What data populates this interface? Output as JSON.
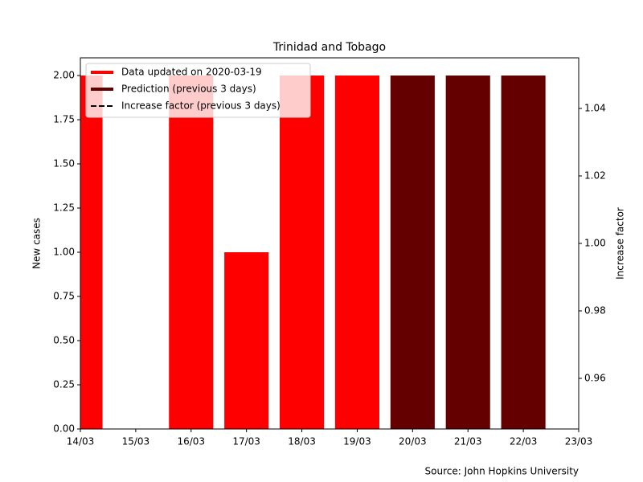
{
  "chart_data": {
    "type": "bar",
    "title": "Trinidad and Tobago",
    "ylabel": "New cases",
    "y2label": "Increase factor",
    "source": "Source: John Hopkins University",
    "categories": [
      "14/03",
      "15/03",
      "16/03",
      "17/03",
      "18/03",
      "19/03",
      "20/03",
      "21/03",
      "22/03",
      "23/03"
    ],
    "series": [
      {
        "name": "Data updated on 2020-03-19",
        "color": "#ff0000",
        "values": [
          2,
          0,
          2,
          1,
          2,
          2,
          null,
          null,
          null,
          null
        ]
      },
      {
        "name": "Prediction (previous 3 days)",
        "color": "#640000",
        "values": [
          null,
          null,
          null,
          null,
          null,
          null,
          2,
          2,
          2,
          null
        ]
      },
      {
        "name": "Increase factor (previous 3 days)",
        "color": "#000000",
        "style": "dashed",
        "axis": "y2",
        "values": [
          null,
          null,
          null,
          null,
          null,
          null,
          null,
          null,
          null,
          null
        ]
      }
    ],
    "ylim": [
      0,
      2.1
    ],
    "yticks": [
      {
        "value": 0,
        "label": "0.00"
      },
      {
        "value": 0.25,
        "label": "0.25"
      },
      {
        "value": 0.5,
        "label": "0.50"
      },
      {
        "value": 0.75,
        "label": "0.75"
      },
      {
        "value": 1,
        "label": "1.00"
      },
      {
        "value": 1.25,
        "label": "1.25"
      },
      {
        "value": 1.5,
        "label": "1.50"
      },
      {
        "value": 1.75,
        "label": "1.75"
      },
      {
        "value": 2,
        "label": "2.00"
      }
    ],
    "y2lim": [
      0.945,
      1.055
    ],
    "y2ticks": [
      0.96,
      0.98,
      {
        "value": 1,
        "label": "1.00"
      },
      1.02,
      1.04
    ],
    "legend": "upper left"
  }
}
